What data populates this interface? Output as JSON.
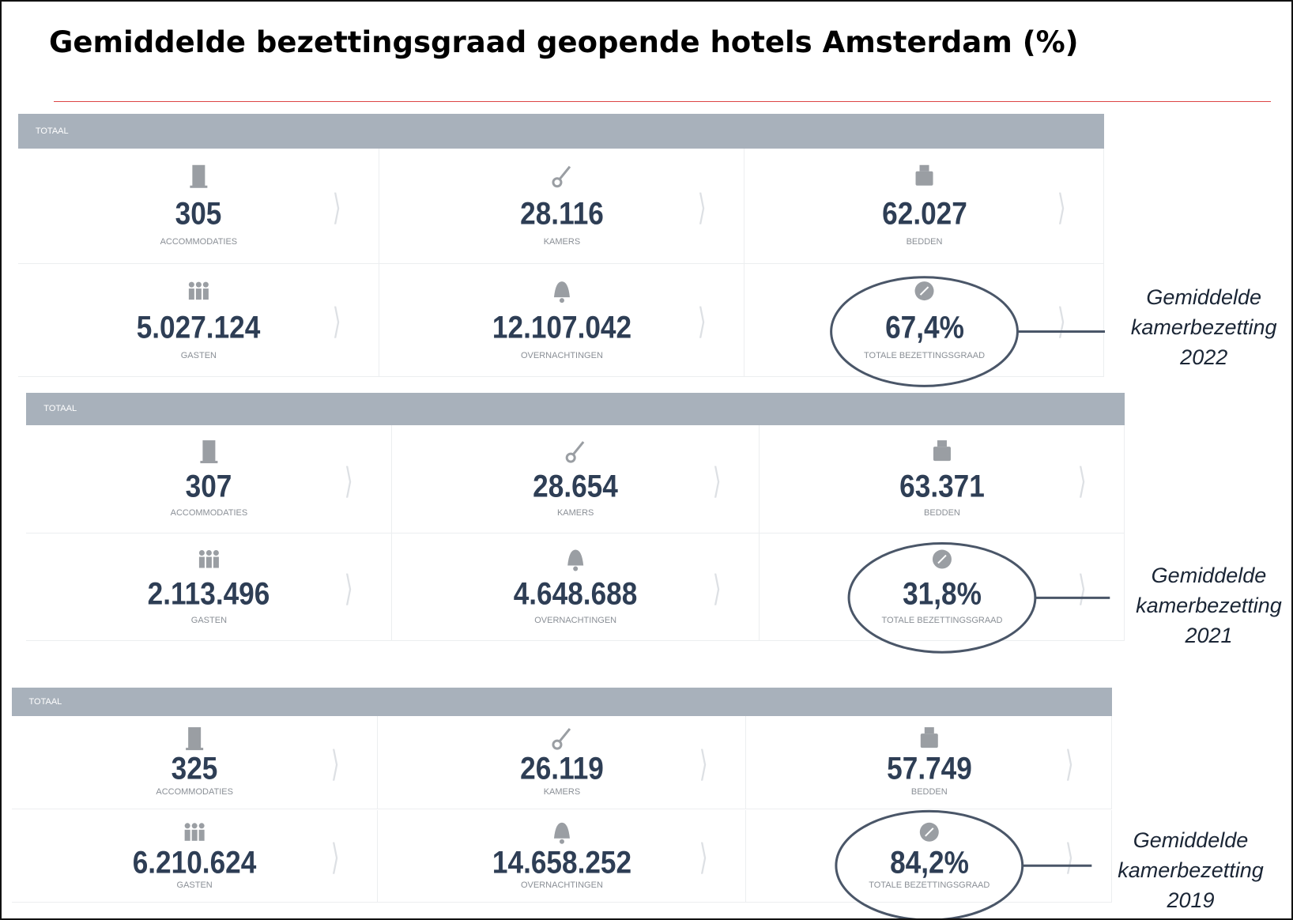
{
  "title": "Gemiddelde bezettingsgraad geopende hotels Amsterdam (%)",
  "panels": [
    {
      "header": "TOTAAL",
      "stats": [
        {
          "value": "305",
          "label": "ACCOMMODATIES"
        },
        {
          "value": "28.116",
          "label": "KAMERS"
        },
        {
          "value": "62.027",
          "label": "BEDDEN"
        },
        {
          "value": "5.027.124",
          "label": "GASTEN"
        },
        {
          "value": "12.107.042",
          "label": "OVERNACHTINGEN"
        },
        {
          "value": "67,4%",
          "label": "TOTALE BEZETTINGSGRAAD"
        }
      ],
      "annotation": [
        "Gemiddelde",
        "kamerbezetting",
        "2022"
      ]
    },
    {
      "header": "TOTAAL",
      "stats": [
        {
          "value": "307",
          "label": "ACCOMMODATIES"
        },
        {
          "value": "28.654",
          "label": "KAMERS"
        },
        {
          "value": "63.371",
          "label": "BEDDEN"
        },
        {
          "value": "2.113.496",
          "label": "GASTEN"
        },
        {
          "value": "4.648.688",
          "label": "OVERNACHTINGEN"
        },
        {
          "value": "31,8%",
          "label": "TOTALE BEZETTINGSGRAAD"
        }
      ],
      "annotation": [
        "Gemiddelde",
        "kamerbezetting",
        "2021"
      ]
    },
    {
      "header": "TOTAAL",
      "stats": [
        {
          "value": "325",
          "label": "ACCOMMODATIES"
        },
        {
          "value": "26.119",
          "label": "KAMERS"
        },
        {
          "value": "57.749",
          "label": "BEDDEN"
        },
        {
          "value": "6.210.624",
          "label": "GASTEN"
        },
        {
          "value": "14.658.252",
          "label": "OVERNACHTINGEN"
        },
        {
          "value": "84,2%",
          "label": "TOTALE BEZETTINGSGRAAD"
        }
      ],
      "annotation": [
        "Gemiddelde",
        "kamerbezetting",
        "2019"
      ]
    }
  ]
}
